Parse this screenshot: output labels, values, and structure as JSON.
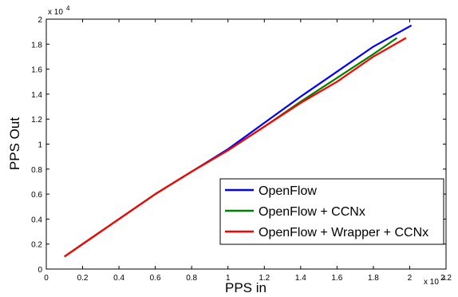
{
  "chart_data": {
    "type": "line",
    "xlabel": "PPS in",
    "ylabel": "PPS Out",
    "x_multiplier": "x 10^4",
    "y_multiplier": "x 10^4",
    "xlim": [
      0,
      2.2
    ],
    "ylim": [
      0,
      2
    ],
    "x_ticks": [
      "0",
      "0.2",
      "0.4",
      "0.6",
      "0.8",
      "1",
      "1.2",
      "1.4",
      "1.6",
      "1.8",
      "2",
      "2.2"
    ],
    "y_ticks": [
      "0",
      "0.2",
      "0.4",
      "0.6",
      "0.8",
      "1",
      "1.2",
      "1.4",
      "1.6",
      "1.8",
      "2"
    ],
    "grid": false,
    "legend_position": "bottom-right",
    "series": [
      {
        "name": "OpenFlow",
        "color": "#0000ff",
        "x": [
          0.1,
          0.2,
          0.4,
          0.6,
          0.8,
          1.0,
          1.2,
          1.4,
          1.6,
          1.8,
          2.01
        ],
        "y": [
          0.1,
          0.2,
          0.4,
          0.6,
          0.78,
          0.96,
          1.17,
          1.38,
          1.58,
          1.78,
          1.95
        ]
      },
      {
        "name": "OpenFlow + CCNx",
        "color": "#008000",
        "x": [
          0.1,
          0.2,
          0.4,
          0.6,
          0.8,
          1.0,
          1.2,
          1.4,
          1.6,
          1.8,
          1.93
        ],
        "y": [
          0.1,
          0.2,
          0.4,
          0.6,
          0.78,
          0.95,
          1.14,
          1.34,
          1.53,
          1.72,
          1.85
        ]
      },
      {
        "name": "OpenFlow + Wrapper + CCNx",
        "color": "#ff0000",
        "x": [
          0.1,
          0.2,
          0.4,
          0.6,
          0.8,
          1.0,
          1.2,
          1.4,
          1.6,
          1.8,
          1.98
        ],
        "y": [
          0.1,
          0.2,
          0.4,
          0.6,
          0.78,
          0.95,
          1.14,
          1.33,
          1.5,
          1.7,
          1.85
        ]
      }
    ]
  }
}
